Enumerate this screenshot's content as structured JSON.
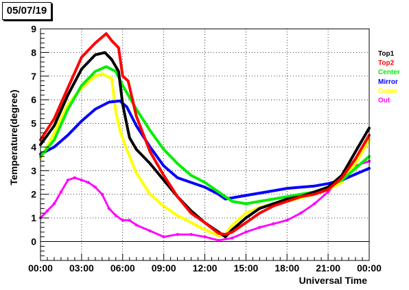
{
  "header": {
    "date_label": "05/07/19"
  },
  "chart_data": {
    "type": "scatter",
    "title": "05/07/19",
    "xlabel": "Universal Time",
    "ylabel": "Temperature(degree)",
    "xlim": [
      0,
      24
    ],
    "ylim": [
      -0.8,
      9
    ],
    "grid": true,
    "legend_position": "right",
    "x_ticks": [
      {
        "value": 0,
        "label": "00:00"
      },
      {
        "value": 3,
        "label": "03:00"
      },
      {
        "value": 6,
        "label": "06:00"
      },
      {
        "value": 9,
        "label": "09:00"
      },
      {
        "value": 12,
        "label": "12:00"
      },
      {
        "value": 15,
        "label": "15:00"
      },
      {
        "value": 18,
        "label": "18:00"
      },
      {
        "value": 21,
        "label": "21:00"
      },
      {
        "value": 24,
        "label": "00:00"
      }
    ],
    "y_ticks": [
      0,
      1,
      2,
      3,
      4,
      5,
      6,
      7,
      8,
      9
    ],
    "series": [
      {
        "name": "Top1",
        "color": "#000000",
        "points": [
          [
            0,
            4.1
          ],
          [
            1,
            4.9
          ],
          [
            2,
            6.2
          ],
          [
            3,
            7.3
          ],
          [
            4,
            7.9
          ],
          [
            4.7,
            8.0
          ],
          [
            5.2,
            7.7
          ],
          [
            5.7,
            7.2
          ],
          [
            6,
            5.8
          ],
          [
            6.5,
            4.4
          ],
          [
            7,
            3.9
          ],
          [
            8,
            3.3
          ],
          [
            9,
            2.6
          ],
          [
            10,
            1.9
          ],
          [
            11,
            1.3
          ],
          [
            12,
            0.8
          ],
          [
            13,
            0.4
          ],
          [
            13.5,
            0.2
          ],
          [
            14,
            0.5
          ],
          [
            15,
            1.0
          ],
          [
            16,
            1.4
          ],
          [
            17,
            1.6
          ],
          [
            18,
            1.8
          ],
          [
            19,
            1.9
          ],
          [
            20,
            2.1
          ],
          [
            21,
            2.3
          ],
          [
            22,
            2.8
          ],
          [
            23,
            3.8
          ],
          [
            24,
            4.8
          ]
        ]
      },
      {
        "name": "Top2",
        "color": "#ff0000",
        "points": [
          [
            0,
            4.3
          ],
          [
            1,
            5.2
          ],
          [
            2,
            6.5
          ],
          [
            3,
            7.8
          ],
          [
            4,
            8.4
          ],
          [
            4.8,
            8.8
          ],
          [
            5.2,
            8.5
          ],
          [
            5.7,
            8.2
          ],
          [
            6,
            7.0
          ],
          [
            6.4,
            6.8
          ],
          [
            7,
            5.3
          ],
          [
            8,
            3.8
          ],
          [
            9,
            2.8
          ],
          [
            10,
            1.9
          ],
          [
            11,
            1.2
          ],
          [
            12,
            0.8
          ],
          [
            13,
            0.35
          ],
          [
            13.5,
            0.3
          ],
          [
            14,
            0.4
          ],
          [
            15,
            0.8
          ],
          [
            16,
            1.2
          ],
          [
            17,
            1.5
          ],
          [
            18,
            1.7
          ],
          [
            19,
            1.9
          ],
          [
            20,
            2.0
          ],
          [
            21,
            2.2
          ],
          [
            22,
            2.7
          ],
          [
            23,
            3.5
          ],
          [
            24,
            4.5
          ]
        ]
      },
      {
        "name": "Center",
        "color": "#00ee00",
        "points": [
          [
            0,
            3.6
          ],
          [
            1,
            4.3
          ],
          [
            2,
            5.6
          ],
          [
            3,
            6.6
          ],
          [
            4,
            7.2
          ],
          [
            4.8,
            7.4
          ],
          [
            5.5,
            7.2
          ],
          [
            6,
            6.6
          ],
          [
            7,
            5.6
          ],
          [
            8,
            4.7
          ],
          [
            9,
            3.9
          ],
          [
            10,
            3.3
          ],
          [
            11,
            2.8
          ],
          [
            12,
            2.5
          ],
          [
            13,
            2.1
          ],
          [
            14,
            1.7
          ],
          [
            15,
            1.6
          ],
          [
            16,
            1.7
          ],
          [
            17,
            1.8
          ],
          [
            18,
            1.9
          ],
          [
            19,
            2.0
          ],
          [
            20,
            2.1
          ],
          [
            21,
            2.3
          ],
          [
            22,
            2.6
          ],
          [
            23,
            3.1
          ],
          [
            24,
            3.6
          ]
        ]
      },
      {
        "name": "Mirror",
        "color": "#0000ff",
        "points": [
          [
            0,
            3.7
          ],
          [
            1,
            4.0
          ],
          [
            2,
            4.5
          ],
          [
            3,
            5.1
          ],
          [
            4,
            5.6
          ],
          [
            5,
            5.9
          ],
          [
            5.8,
            5.95
          ],
          [
            6.3,
            5.7
          ],
          [
            7,
            4.9
          ],
          [
            8,
            4.0
          ],
          [
            9,
            3.2
          ],
          [
            10,
            2.7
          ],
          [
            11,
            2.5
          ],
          [
            12,
            2.3
          ],
          [
            13,
            2.0
          ],
          [
            13.5,
            1.8
          ],
          [
            14,
            1.85
          ],
          [
            15,
            1.95
          ],
          [
            16,
            2.05
          ],
          [
            17,
            2.15
          ],
          [
            18,
            2.25
          ],
          [
            19,
            2.3
          ],
          [
            20,
            2.35
          ],
          [
            21,
            2.45
          ],
          [
            22,
            2.6
          ],
          [
            23,
            2.85
          ],
          [
            24,
            3.1
          ]
        ]
      },
      {
        "name": "Dome",
        "color": "#ffff00",
        "points": [
          [
            0,
            3.5
          ],
          [
            1,
            4.6
          ],
          [
            2,
            5.8
          ],
          [
            3,
            6.5
          ],
          [
            4,
            7.0
          ],
          [
            4.5,
            7.1
          ],
          [
            5.2,
            6.9
          ],
          [
            5.5,
            5.5
          ],
          [
            5.8,
            4.7
          ],
          [
            6.3,
            3.9
          ],
          [
            7,
            2.9
          ],
          [
            8,
            2.0
          ],
          [
            9,
            1.5
          ],
          [
            10,
            1.1
          ],
          [
            11,
            0.8
          ],
          [
            12,
            0.5
          ],
          [
            13,
            0.25
          ],
          [
            13.5,
            0.3
          ],
          [
            14,
            0.7
          ],
          [
            15,
            1.2
          ],
          [
            16,
            1.45
          ],
          [
            17,
            1.6
          ],
          [
            18,
            1.7
          ],
          [
            19,
            1.85
          ],
          [
            20,
            2.0
          ],
          [
            21,
            2.2
          ],
          [
            22,
            2.5
          ],
          [
            23,
            3.3
          ],
          [
            24,
            4.3
          ]
        ]
      },
      {
        "name": "Out",
        "color": "#ff00ff",
        "points": [
          [
            0,
            1.0
          ],
          [
            0.5,
            1.3
          ],
          [
            1,
            1.6
          ],
          [
            1.5,
            2.1
          ],
          [
            2,
            2.6
          ],
          [
            2.5,
            2.7
          ],
          [
            3,
            2.6
          ],
          [
            3.5,
            2.5
          ],
          [
            4,
            2.3
          ],
          [
            4.5,
            2.0
          ],
          [
            5,
            1.4
          ],
          [
            5.5,
            1.1
          ],
          [
            6,
            0.9
          ],
          [
            6.5,
            0.9
          ],
          [
            7,
            0.7
          ],
          [
            8,
            0.45
          ],
          [
            9,
            0.2
          ],
          [
            10,
            0.3
          ],
          [
            11,
            0.3
          ],
          [
            12,
            0.2
          ],
          [
            13,
            0.05
          ],
          [
            14,
            0.15
          ],
          [
            15,
            0.4
          ],
          [
            16,
            0.6
          ],
          [
            17,
            0.75
          ],
          [
            18,
            0.9
          ],
          [
            19,
            1.2
          ],
          [
            20,
            1.6
          ],
          [
            21,
            2.1
          ],
          [
            22,
            2.7
          ],
          [
            23,
            3.2
          ],
          [
            24,
            3.4
          ]
        ]
      }
    ]
  }
}
